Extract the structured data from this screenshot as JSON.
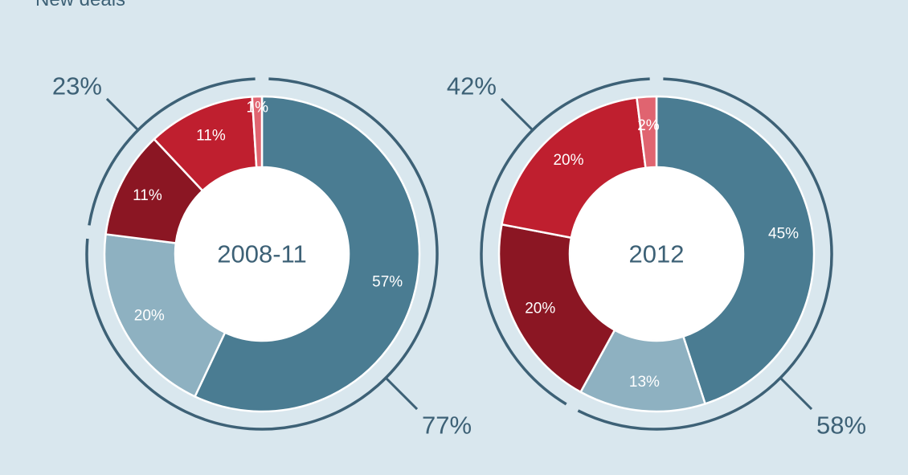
{
  "title": "New deals",
  "colors": {
    "background": "#d9e7ee",
    "text": "#3d6176",
    "slices": [
      "#4a7c92",
      "#8eb1c1",
      "#8b1623",
      "#bf1f2f",
      "#e06470"
    ]
  },
  "chart_data": [
    {
      "type": "pie",
      "center_label": "2008-11",
      "slices": [
        {
          "label": "57%",
          "value": 57
        },
        {
          "label": "20%",
          "value": 20
        },
        {
          "label": "11%",
          "value": 11
        },
        {
          "label": "11%",
          "value": 11
        },
        {
          "label": "1%",
          "value": 1
        }
      ],
      "groups": [
        {
          "label": "77%",
          "value": 77
        },
        {
          "label": "23%",
          "value": 23
        }
      ]
    },
    {
      "type": "pie",
      "center_label": "2012",
      "slices": [
        {
          "label": "45%",
          "value": 45
        },
        {
          "label": "13%",
          "value": 13
        },
        {
          "label": "20%",
          "value": 20
        },
        {
          "label": "20%",
          "value": 20
        },
        {
          "label": "2%",
          "value": 2
        }
      ],
      "groups": [
        {
          "label": "58%",
          "value": 58
        },
        {
          "label": "42%",
          "value": 42
        }
      ]
    }
  ]
}
